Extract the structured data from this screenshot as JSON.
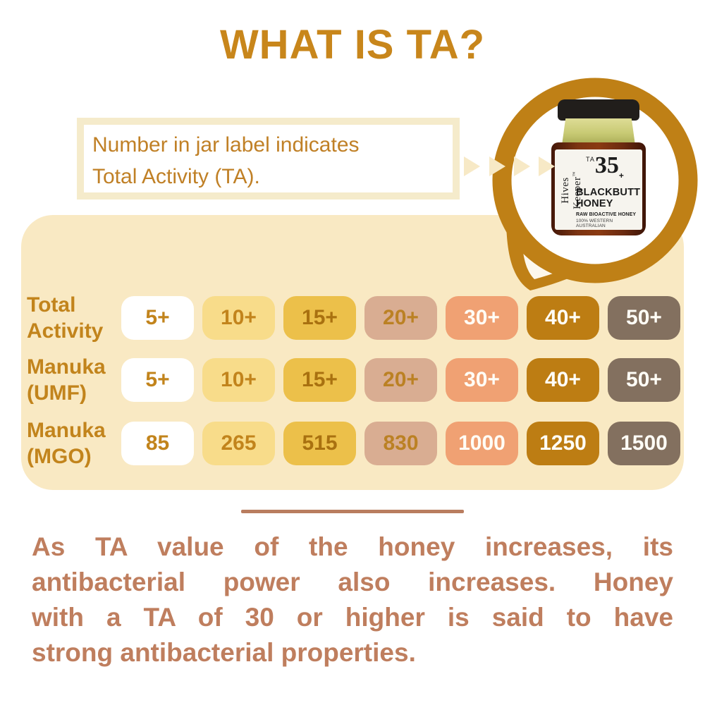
{
  "title": "WHAT IS TA?",
  "callout": {
    "line1": "Number in jar label indicates",
    "line2": "Total Activity (TA)."
  },
  "jar": {
    "brand": "Hives Keeper",
    "tm": "™",
    "ta_label": "TA",
    "ta_value": "35",
    "ta_plus": "+",
    "name_line1": "BLACKBUTT",
    "name_line2": "HONEY",
    "sub1": "RAW BIOACTIVE HONEY",
    "sub2": "100% WESTERN AUSTRALIAN"
  },
  "table": {
    "rows": [
      {
        "label_line1": "Total",
        "label_line2": "Activity",
        "values": [
          "5+",
          "10+",
          "15+",
          "20+",
          "30+",
          "40+",
          "50+"
        ]
      },
      {
        "label_line1": "Manuka",
        "label_line2": "(UMF)",
        "values": [
          "5+",
          "10+",
          "15+",
          "20+",
          "30+",
          "40+",
          "50+"
        ]
      },
      {
        "label_line1": "Manuka",
        "label_line2": "(MGO)",
        "values": [
          "85",
          "265",
          "515",
          "830",
          "1000",
          "1250",
          "1500"
        ]
      }
    ]
  },
  "footer": {
    "lines": [
      "As TA value of the honey increases, its",
      "antibacterial power also increases. Honey",
      "with a TA of 30 or higher is said to have",
      "strong antibacterial properties."
    ]
  },
  "colors": {
    "title_gold": "#C8861B",
    "bubble_gold": "#BF8016",
    "table_background": "#F9E9C3",
    "callout_border": "#F5EBCB",
    "arrow_cream": "#F7E9C6",
    "row_label_gold": "#C2841C",
    "footer_terracotta": "#BF7E5E",
    "pill_palette": [
      {
        "bg": "#FFFFFF",
        "fg": "#C2841C"
      },
      {
        "bg": "#F8DC8A",
        "fg": "#C2841C"
      },
      {
        "bg": "#ECC04A",
        "fg": "#A97110"
      },
      {
        "bg": "#D9AD92",
        "fg": "#BB8124"
      },
      {
        "bg": "#F0A173",
        "fg": "#FFFDF6"
      },
      {
        "bg": "#BD7D13",
        "fg": "#FFFDF6"
      },
      {
        "bg": "#83705F",
        "fg": "#FFFDF6"
      }
    ]
  }
}
